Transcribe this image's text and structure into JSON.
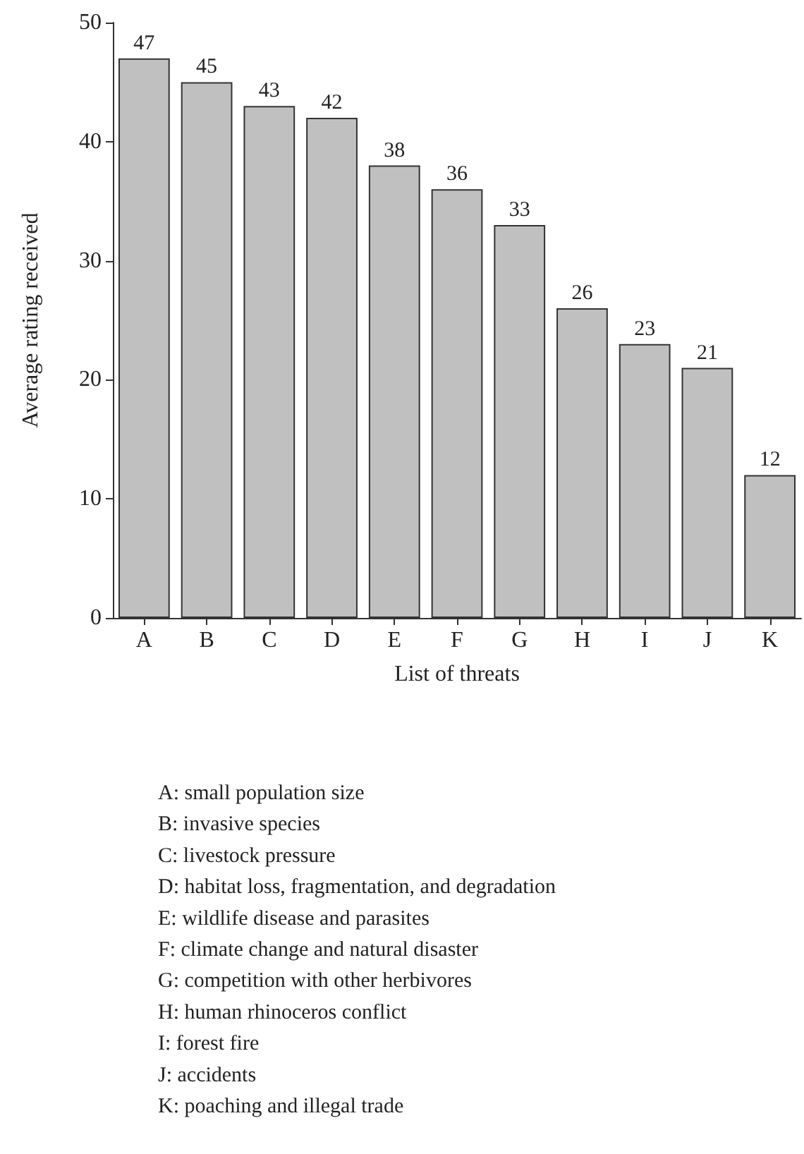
{
  "chart_data": {
    "type": "bar",
    "xlabel": "List of threats",
    "ylabel": "Average rating received",
    "categories": [
      "A",
      "B",
      "C",
      "D",
      "E",
      "F",
      "G",
      "H",
      "I",
      "J",
      "K"
    ],
    "values": [
      47,
      45,
      43,
      42,
      38,
      36,
      33,
      26,
      23,
      21,
      12
    ],
    "color": "#c0c0c0",
    "ylim": [
      0,
      50
    ],
    "yticks": [
      0,
      10,
      20,
      30,
      40,
      50
    ],
    "grid": false,
    "data_labels": true,
    "annotations": [
      "A: small population size",
      "B: invasive species",
      "C: livestock pressure",
      "D: habitat loss, fragmentation, and degradation",
      "E: wildlife disease and parasites",
      "F: climate change and natural disaster",
      "G: competition with other herbivores",
      "H: human rhinoceros conflict",
      "I: forest fire",
      "J: accidents",
      "K: poaching and illegal trade"
    ]
  }
}
